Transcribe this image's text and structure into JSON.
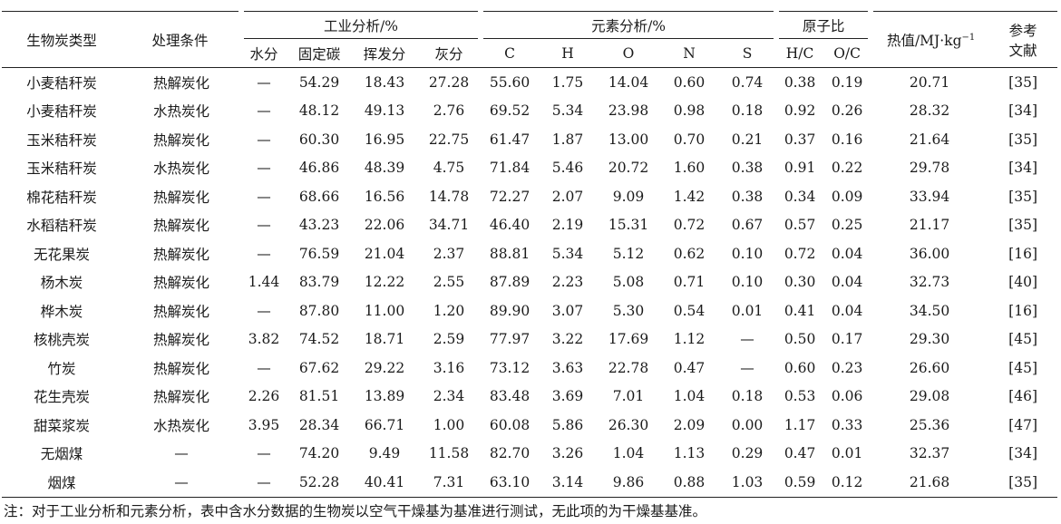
{
  "headers": {
    "type": "生物炭类型",
    "condition": "处理条件",
    "proximate_group": "工业分析/%",
    "proximate": [
      "水分",
      "固定碳",
      "挥发分",
      "灰分"
    ],
    "ultimate_group": "元素分析/%",
    "ultimate": [
      "C",
      "H",
      "O",
      "N",
      "S"
    ],
    "atomic_group": "原子比",
    "atomic": [
      "H/C",
      "O/C"
    ],
    "heating_value_main": "热值/MJ·kg",
    "heating_value_exp": "−1",
    "ref_line1": "参考",
    "ref_line2": "文献"
  },
  "rows": [
    [
      "小麦秸秆炭",
      "热解炭化",
      "—",
      "54.29",
      "18.43",
      "27.28",
      "55.60",
      "1.75",
      "14.04",
      "0.60",
      "0.74",
      "0.38",
      "0.19",
      "20.71",
      "[35]"
    ],
    [
      "小麦秸秆炭",
      "水热炭化",
      "—",
      "48.12",
      "49.13",
      "2.76",
      "69.52",
      "5.34",
      "23.98",
      "0.98",
      "0.18",
      "0.92",
      "0.26",
      "28.32",
      "[34]"
    ],
    [
      "玉米秸秆炭",
      "热解炭化",
      "—",
      "60.30",
      "16.95",
      "22.75",
      "61.47",
      "1.87",
      "13.00",
      "0.70",
      "0.21",
      "0.37",
      "0.16",
      "21.64",
      "[35]"
    ],
    [
      "玉米秸秆炭",
      "水热炭化",
      "—",
      "46.86",
      "48.39",
      "4.75",
      "71.84",
      "5.46",
      "20.72",
      "1.60",
      "0.38",
      "0.91",
      "0.22",
      "29.78",
      "[34]"
    ],
    [
      "棉花秸秆炭",
      "热解炭化",
      "—",
      "68.66",
      "16.56",
      "14.78",
      "72.27",
      "2.07",
      "9.09",
      "1.42",
      "0.38",
      "0.34",
      "0.09",
      "33.94",
      "[35]"
    ],
    [
      "水稻秸秆炭",
      "热解炭化",
      "—",
      "43.23",
      "22.06",
      "34.71",
      "46.40",
      "2.19",
      "15.31",
      "0.72",
      "0.67",
      "0.57",
      "0.25",
      "21.17",
      "[35]"
    ],
    [
      "无花果炭",
      "热解炭化",
      "—",
      "76.59",
      "21.04",
      "2.37",
      "88.81",
      "5.34",
      "5.12",
      "0.62",
      "0.10",
      "0.72",
      "0.04",
      "36.00",
      "[16]"
    ],
    [
      "杨木炭",
      "热解炭化",
      "1.44",
      "83.79",
      "12.22",
      "2.55",
      "87.89",
      "2.23",
      "5.08",
      "0.71",
      "0.10",
      "0.30",
      "0.04",
      "32.73",
      "[40]"
    ],
    [
      "桦木炭",
      "热解炭化",
      "—",
      "87.80",
      "11.00",
      "1.20",
      "89.90",
      "3.07",
      "5.30",
      "0.54",
      "0.01",
      "0.41",
      "0.04",
      "34.50",
      "[16]"
    ],
    [
      "核桃壳炭",
      "热解炭化",
      "3.82",
      "74.52",
      "18.71",
      "2.59",
      "77.97",
      "3.22",
      "17.69",
      "1.12",
      "—",
      "0.50",
      "0.17",
      "29.30",
      "[45]"
    ],
    [
      "竹炭",
      "热解炭化",
      "—",
      "67.62",
      "29.22",
      "3.16",
      "73.12",
      "3.63",
      "22.78",
      "0.47",
      "—",
      "0.60",
      "0.23",
      "26.60",
      "[45]"
    ],
    [
      "花生壳炭",
      "热解炭化",
      "2.26",
      "81.51",
      "13.89",
      "2.34",
      "83.48",
      "3.69",
      "7.01",
      "1.04",
      "0.18",
      "0.53",
      "0.06",
      "29.08",
      "[46]"
    ],
    [
      "甜菜浆炭",
      "水热炭化",
      "3.95",
      "28.34",
      "66.71",
      "1.00",
      "60.08",
      "5.86",
      "26.30",
      "2.09",
      "0.00",
      "1.17",
      "0.33",
      "25.36",
      "[47]"
    ],
    [
      "无烟煤",
      "—",
      "—",
      "74.20",
      "9.49",
      "11.58",
      "82.70",
      "3.26",
      "1.04",
      "1.13",
      "0.29",
      "0.47",
      "0.01",
      "32.37",
      "[34]"
    ],
    [
      "烟煤",
      "—",
      "—",
      "52.28",
      "40.41",
      "7.31",
      "63.10",
      "3.14",
      "9.86",
      "0.88",
      "1.03",
      "0.59",
      "0.12",
      "21.68",
      "[35]"
    ]
  ],
  "note": "注：对于工业分析和元素分析，表中含水分数据的生物炭以空气干燥基为基准进行测试，无此项的为干燥基基准。"
}
